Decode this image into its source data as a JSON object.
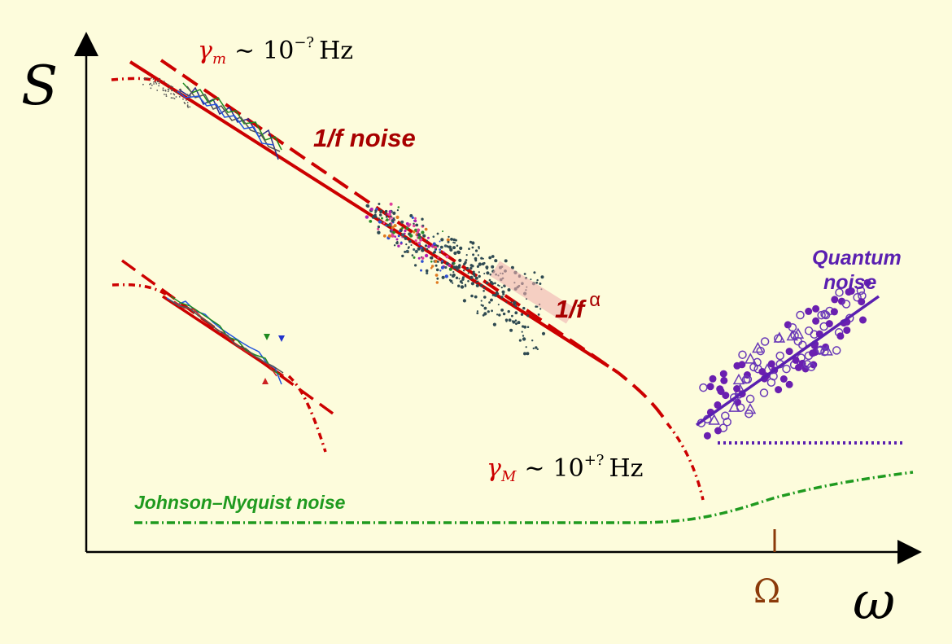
{
  "axes": {
    "y_label": "S",
    "x_label": "ω",
    "tick_label": "Ω"
  },
  "annotations": {
    "gamma_m": {
      "symbol": "γ",
      "sub": "m",
      "tilde": "∼",
      "base": "10",
      "exp": "−?",
      "unit": "Hz"
    },
    "gamma_M": {
      "symbol": "γ",
      "sub": "M",
      "tilde": "∼",
      "base": "10",
      "exp": "+?",
      "unit": "Hz"
    },
    "one_over_f": "1/f noise",
    "one_over_f_alpha": {
      "base": "1/f",
      "exp": "α"
    },
    "quantum_line1": "Quantum",
    "quantum_line2": "noise",
    "johnson": "Johnson–Nyquist noise"
  },
  "colors": {
    "background": "#fdfcdc",
    "axis": "#000000",
    "red": "#cc0000",
    "dark_red": "#a80000",
    "purple": "#5a1fb0",
    "green": "#1f9a1f",
    "omega_tick": "#8b3a0a",
    "data_dark": "#2f4a52"
  }
}
